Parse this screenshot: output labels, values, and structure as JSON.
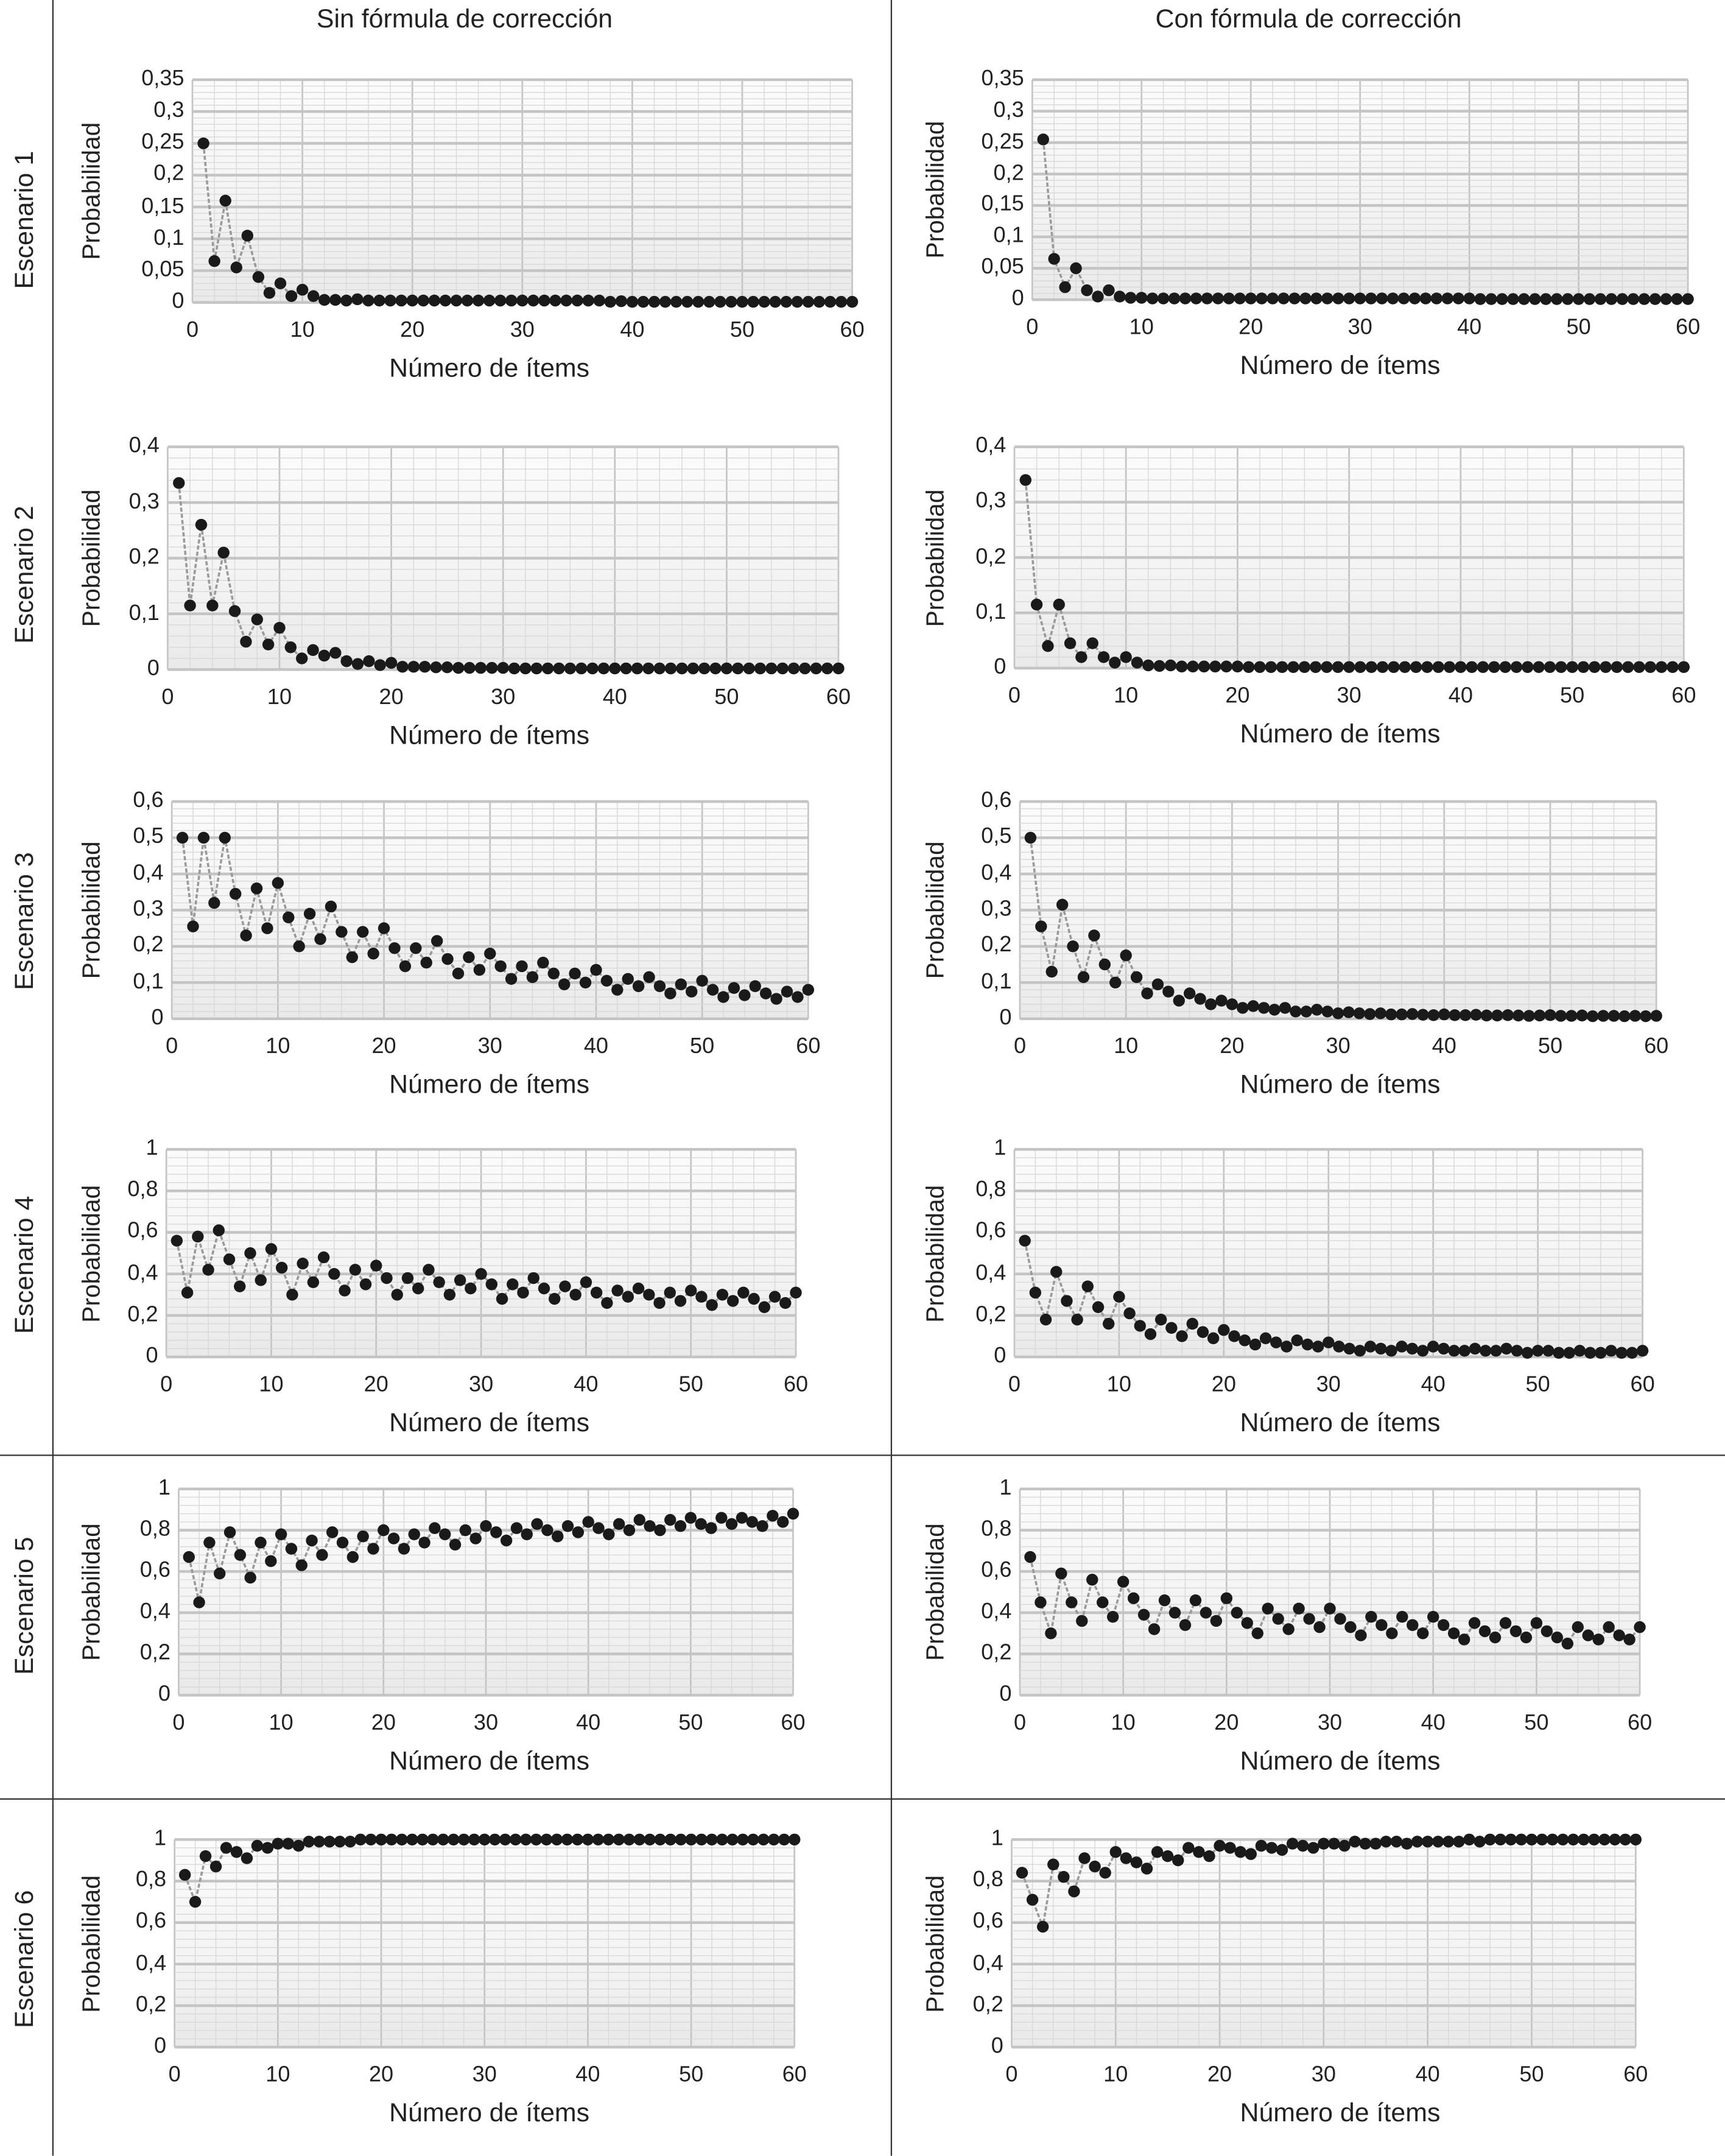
{
  "columns": [
    "Sin fórmula de corrección",
    "Con fórmula de corrección"
  ],
  "rows": [
    "Escenario 1",
    "Escenario 2",
    "Escenario 3",
    "Escenario 4",
    "Escenario 5",
    "Escenario 6"
  ],
  "colors": {
    "marker": "#1a1a1a",
    "line": "#9a9a9a",
    "grid": "#d8d8d8",
    "grid_major": "#c4c4c4"
  },
  "chart_data": [
    {
      "type": "line",
      "scenario": "Escenario 1",
      "column": "Sin fórmula de corrección",
      "xlabel": "Número de ítems",
      "ylabel": "Probabilidad",
      "xlim": [
        0,
        60
      ],
      "ylim": [
        0,
        0.35
      ],
      "grid": true,
      "xticks": [
        "0",
        "10",
        "20",
        "30",
        "40",
        "50",
        "60"
      ],
      "yticks": [
        "0",
        "0,05",
        "0,1",
        "0,15",
        "0,2",
        "0,25",
        "0,3",
        "0,35"
      ],
      "values": [
        0.25,
        0.065,
        0.16,
        0.055,
        0.105,
        0.04,
        0.015,
        0.03,
        0.01,
        0.02,
        0.01,
        0.004,
        0.004,
        0.003,
        0.005,
        0.003,
        0.003,
        0.003,
        0.003,
        0.003,
        0.003,
        0.003,
        0.003,
        0.003,
        0.003,
        0.003,
        0.003,
        0.003,
        0.003,
        0.003,
        0.003,
        0.003,
        0.003,
        0.003,
        0.003,
        0.003,
        0.003,
        0.001,
        0.002,
        0.001,
        0.001,
        0.001,
        0.001,
        0.001,
        0.001,
        0.001,
        0.001,
        0.001,
        0.001,
        0.001,
        0.001,
        0.001,
        0.001,
        0.001,
        0.001,
        0.001,
        0.001,
        0.001,
        0.001,
        0.001
      ]
    },
    {
      "type": "line",
      "scenario": "Escenario 1",
      "column": "Con fórmula de corrección",
      "xlabel": "Número de ítems",
      "ylabel": "Probabilidad",
      "xlim": [
        0,
        60
      ],
      "ylim": [
        0,
        0.35
      ],
      "grid": true,
      "xticks": [
        "0",
        "10",
        "20",
        "30",
        "40",
        "50",
        "60"
      ],
      "yticks": [
        "0",
        "0,05",
        "0,1",
        "0,15",
        "0,2",
        "0,25",
        "0,3",
        "0,35"
      ],
      "values": [
        0.255,
        0.065,
        0.02,
        0.05,
        0.015,
        0.005,
        0.015,
        0.005,
        0.003,
        0.003,
        0.002,
        0.002,
        0.002,
        0.002,
        0.002,
        0.002,
        0.002,
        0.002,
        0.002,
        0.002,
        0.002,
        0.002,
        0.002,
        0.002,
        0.002,
        0.002,
        0.002,
        0.002,
        0.002,
        0.002,
        0.002,
        0.002,
        0.002,
        0.002,
        0.002,
        0.002,
        0.002,
        0.002,
        0.002,
        0.002,
        0.001,
        0.001,
        0.001,
        0.001,
        0.001,
        0.001,
        0.001,
        0.001,
        0.001,
        0.001,
        0.001,
        0.001,
        0.001,
        0.001,
        0.001,
        0.001,
        0.001,
        0.001,
        0.001,
        0.001
      ]
    },
    {
      "type": "line",
      "scenario": "Escenario 2",
      "column": "Sin fórmula de corrección",
      "xlabel": "Número de ítems",
      "ylabel": "Probabilidad",
      "xlim": [
        0,
        60
      ],
      "ylim": [
        0,
        0.4
      ],
      "grid": true,
      "xticks": [
        "0",
        "10",
        "20",
        "30",
        "40",
        "50",
        "60"
      ],
      "yticks": [
        "0",
        "0,1",
        "0,2",
        "0,3",
        "0,4"
      ],
      "values": [
        0.335,
        0.115,
        0.26,
        0.115,
        0.21,
        0.105,
        0.05,
        0.09,
        0.045,
        0.075,
        0.04,
        0.02,
        0.035,
        0.025,
        0.03,
        0.015,
        0.01,
        0.015,
        0.008,
        0.012,
        0.005,
        0.005,
        0.005,
        0.004,
        0.004,
        0.003,
        0.003,
        0.003,
        0.003,
        0.003,
        0.002,
        0.002,
        0.002,
        0.002,
        0.002,
        0.002,
        0.002,
        0.002,
        0.002,
        0.002,
        0.002,
        0.002,
        0.002,
        0.002,
        0.002,
        0.002,
        0.002,
        0.002,
        0.002,
        0.002,
        0.002,
        0.002,
        0.002,
        0.002,
        0.002,
        0.002,
        0.002,
        0.002,
        0.002,
        0.002
      ]
    },
    {
      "type": "line",
      "scenario": "Escenario 2",
      "column": "Con fórmula de corrección",
      "xlabel": "Número de ítems",
      "ylabel": "Probabilidad",
      "xlim": [
        0,
        60
      ],
      "ylim": [
        0,
        0.4
      ],
      "grid": true,
      "xticks": [
        "0",
        "10",
        "20",
        "30",
        "40",
        "50",
        "60"
      ],
      "yticks": [
        "0",
        "0,1",
        "0,2",
        "0,3",
        "0,4"
      ],
      "values": [
        0.34,
        0.115,
        0.04,
        0.115,
        0.045,
        0.02,
        0.045,
        0.02,
        0.01,
        0.02,
        0.01,
        0.005,
        0.004,
        0.005,
        0.003,
        0.003,
        0.003,
        0.003,
        0.003,
        0.003,
        0.002,
        0.002,
        0.002,
        0.002,
        0.002,
        0.002,
        0.002,
        0.002,
        0.002,
        0.002,
        0.002,
        0.002,
        0.002,
        0.002,
        0.002,
        0.002,
        0.002,
        0.002,
        0.002,
        0.002,
        0.002,
        0.002,
        0.002,
        0.002,
        0.002,
        0.002,
        0.002,
        0.002,
        0.002,
        0.002,
        0.002,
        0.002,
        0.002,
        0.002,
        0.002,
        0.002,
        0.002,
        0.002,
        0.002,
        0.002
      ]
    },
    {
      "type": "line",
      "scenario": "Escenario 3",
      "column": "Sin fórmula de corrección",
      "xlabel": "Número de ítems",
      "ylabel": "Probabilidad",
      "xlim": [
        0,
        60
      ],
      "ylim": [
        0,
        0.6
      ],
      "grid": true,
      "xticks": [
        "0",
        "10",
        "20",
        "30",
        "40",
        "50",
        "60"
      ],
      "yticks": [
        "0",
        "0,1",
        "0,2",
        "0,3",
        "0,4",
        "0,5",
        "0,6"
      ],
      "values": [
        0.5,
        0.255,
        0.5,
        0.32,
        0.5,
        0.345,
        0.23,
        0.36,
        0.25,
        0.375,
        0.28,
        0.2,
        0.29,
        0.22,
        0.31,
        0.24,
        0.17,
        0.24,
        0.18,
        0.25,
        0.195,
        0.145,
        0.195,
        0.155,
        0.215,
        0.165,
        0.125,
        0.17,
        0.135,
        0.18,
        0.145,
        0.11,
        0.145,
        0.115,
        0.155,
        0.125,
        0.095,
        0.125,
        0.1,
        0.135,
        0.105,
        0.08,
        0.11,
        0.09,
        0.115,
        0.09,
        0.07,
        0.095,
        0.075,
        0.105,
        0.08,
        0.06,
        0.085,
        0.065,
        0.09,
        0.07,
        0.055,
        0.075,
        0.06,
        0.08
      ]
    },
    {
      "type": "line",
      "scenario": "Escenario 3",
      "column": "Con fórmula de corrección",
      "xlabel": "Número de ítems",
      "ylabel": "Probabilidad",
      "xlim": [
        0,
        60
      ],
      "ylim": [
        0,
        0.6
      ],
      "grid": true,
      "xticks": [
        "0",
        "10",
        "20",
        "30",
        "40",
        "50",
        "60"
      ],
      "yticks": [
        "0",
        "0,1",
        "0,2",
        "0,3",
        "0,4",
        "0,5",
        "0,6"
      ],
      "values": [
        0.5,
        0.255,
        0.13,
        0.315,
        0.2,
        0.115,
        0.23,
        0.15,
        0.1,
        0.175,
        0.115,
        0.07,
        0.095,
        0.075,
        0.05,
        0.07,
        0.055,
        0.04,
        0.05,
        0.04,
        0.03,
        0.035,
        0.03,
        0.025,
        0.03,
        0.02,
        0.02,
        0.025,
        0.02,
        0.015,
        0.018,
        0.015,
        0.013,
        0.015,
        0.012,
        0.012,
        0.013,
        0.011,
        0.01,
        0.012,
        0.01,
        0.01,
        0.011,
        0.009,
        0.009,
        0.01,
        0.009,
        0.008,
        0.009,
        0.01,
        0.008,
        0.008,
        0.009,
        0.007,
        0.008,
        0.008,
        0.007,
        0.008,
        0.007,
        0.008
      ]
    },
    {
      "type": "line",
      "scenario": "Escenario 4",
      "column": "Sin fórmula de corrección",
      "xlabel": "Número de ítems",
      "ylabel": "Probabilidad",
      "xlim": [
        0,
        60
      ],
      "ylim": [
        0,
        1
      ],
      "grid": true,
      "xticks": [
        "0",
        "10",
        "20",
        "30",
        "40",
        "50",
        "60"
      ],
      "yticks": [
        "0",
        "0,2",
        "0,4",
        "0,6",
        "0,8",
        "1"
      ],
      "values": [
        0.56,
        0.31,
        0.58,
        0.42,
        0.61,
        0.47,
        0.34,
        0.5,
        0.37,
        0.52,
        0.43,
        0.3,
        0.45,
        0.36,
        0.48,
        0.4,
        0.32,
        0.42,
        0.35,
        0.44,
        0.38,
        0.3,
        0.38,
        0.33,
        0.42,
        0.36,
        0.3,
        0.37,
        0.33,
        0.4,
        0.35,
        0.28,
        0.35,
        0.31,
        0.38,
        0.33,
        0.28,
        0.34,
        0.3,
        0.36,
        0.31,
        0.26,
        0.32,
        0.29,
        0.33,
        0.3,
        0.26,
        0.31,
        0.27,
        0.32,
        0.29,
        0.25,
        0.3,
        0.27,
        0.31,
        0.28,
        0.24,
        0.29,
        0.26,
        0.31
      ]
    },
    {
      "type": "line",
      "scenario": "Escenario 4",
      "column": "Con fórmula de corrección",
      "xlabel": "Número de ítems",
      "ylabel": "Probabilidad",
      "xlim": [
        0,
        60
      ],
      "ylim": [
        0,
        1
      ],
      "grid": true,
      "xticks": [
        "0",
        "10",
        "20",
        "30",
        "40",
        "50",
        "60"
      ],
      "yticks": [
        "0",
        "0,2",
        "0,4",
        "0,6",
        "0,8",
        "1"
      ],
      "values": [
        0.56,
        0.31,
        0.18,
        0.41,
        0.27,
        0.18,
        0.34,
        0.24,
        0.16,
        0.29,
        0.21,
        0.15,
        0.11,
        0.18,
        0.14,
        0.1,
        0.16,
        0.12,
        0.09,
        0.13,
        0.1,
        0.08,
        0.06,
        0.09,
        0.07,
        0.05,
        0.08,
        0.06,
        0.05,
        0.07,
        0.05,
        0.04,
        0.03,
        0.05,
        0.04,
        0.03,
        0.05,
        0.04,
        0.03,
        0.05,
        0.04,
        0.03,
        0.03,
        0.04,
        0.03,
        0.03,
        0.04,
        0.03,
        0.02,
        0.03,
        0.03,
        0.02,
        0.02,
        0.03,
        0.02,
        0.02,
        0.03,
        0.02,
        0.02,
        0.03
      ]
    },
    {
      "type": "line",
      "scenario": "Escenario 5",
      "column": "Sin fórmula de corrección",
      "xlabel": "Número de ítems",
      "ylabel": "Probabilidad",
      "xlim": [
        0,
        60
      ],
      "ylim": [
        0,
        1
      ],
      "grid": true,
      "xticks": [
        "0",
        "10",
        "20",
        "30",
        "40",
        "50",
        "60"
      ],
      "yticks": [
        "0",
        "0,2",
        "0,4",
        "0,6",
        "0,8",
        "1"
      ],
      "values": [
        0.67,
        0.45,
        0.74,
        0.59,
        0.79,
        0.68,
        0.57,
        0.74,
        0.65,
        0.78,
        0.71,
        0.63,
        0.75,
        0.68,
        0.79,
        0.74,
        0.67,
        0.77,
        0.71,
        0.8,
        0.76,
        0.71,
        0.78,
        0.74,
        0.81,
        0.78,
        0.73,
        0.8,
        0.76,
        0.82,
        0.79,
        0.75,
        0.81,
        0.78,
        0.83,
        0.8,
        0.77,
        0.82,
        0.79,
        0.84,
        0.81,
        0.78,
        0.83,
        0.8,
        0.85,
        0.82,
        0.8,
        0.85,
        0.82,
        0.86,
        0.83,
        0.81,
        0.86,
        0.83,
        0.86,
        0.84,
        0.82,
        0.87,
        0.84,
        0.88
      ]
    },
    {
      "type": "line",
      "scenario": "Escenario 5",
      "column": "Con fórmula de corrección",
      "xlabel": "Número de ítems",
      "ylabel": "Probabilidad",
      "xlim": [
        0,
        60
      ],
      "ylim": [
        0,
        1
      ],
      "grid": true,
      "xticks": [
        "0",
        "10",
        "20",
        "30",
        "40",
        "50",
        "60"
      ],
      "yticks": [
        "0",
        "0,2",
        "0,4",
        "0,6",
        "0,8",
        "1"
      ],
      "values": [
        0.67,
        0.45,
        0.3,
        0.59,
        0.45,
        0.36,
        0.56,
        0.45,
        0.38,
        0.55,
        0.47,
        0.39,
        0.32,
        0.46,
        0.4,
        0.34,
        0.46,
        0.4,
        0.36,
        0.47,
        0.4,
        0.35,
        0.3,
        0.42,
        0.37,
        0.32,
        0.42,
        0.37,
        0.33,
        0.42,
        0.37,
        0.33,
        0.29,
        0.38,
        0.34,
        0.3,
        0.38,
        0.34,
        0.3,
        0.38,
        0.34,
        0.3,
        0.27,
        0.35,
        0.31,
        0.28,
        0.35,
        0.31,
        0.28,
        0.35,
        0.31,
        0.28,
        0.25,
        0.33,
        0.29,
        0.27,
        0.33,
        0.29,
        0.27,
        0.33
      ]
    },
    {
      "type": "line",
      "scenario": "Escenario 6",
      "column": "Sin fórmula de corrección",
      "xlabel": "Número de ítems",
      "ylabel": "Probabilidad",
      "xlim": [
        0,
        60
      ],
      "ylim": [
        0,
        1
      ],
      "grid": true,
      "xticks": [
        "0",
        "10",
        "20",
        "30",
        "40",
        "50",
        "60"
      ],
      "yticks": [
        "0",
        "0,2",
        "0,4",
        "0,6",
        "0,8",
        "1"
      ],
      "values": [
        0.83,
        0.7,
        0.92,
        0.87,
        0.96,
        0.94,
        0.91,
        0.97,
        0.96,
        0.98,
        0.98,
        0.97,
        0.99,
        0.99,
        0.99,
        0.99,
        0.99,
        1,
        1,
        1,
        1,
        1,
        1,
        1,
        1,
        1,
        1,
        1,
        1,
        1,
        1,
        1,
        1,
        1,
        1,
        1,
        1,
        1,
        1,
        1,
        1,
        1,
        1,
        1,
        1,
        1,
        1,
        1,
        1,
        1,
        1,
        1,
        1,
        1,
        1,
        1,
        1,
        1,
        1,
        1
      ]
    },
    {
      "type": "line",
      "scenario": "Escenario 6",
      "column": "Con fórmula de corrección",
      "xlabel": "Número de ítems",
      "ylabel": "Probabilidad",
      "xlim": [
        0,
        60
      ],
      "ylim": [
        0,
        1
      ],
      "grid": true,
      "xticks": [
        "0",
        "10",
        "20",
        "30",
        "40",
        "50",
        "60"
      ],
      "yticks": [
        "0",
        "0,2",
        "0,4",
        "0,6",
        "0,8",
        "1"
      ],
      "values": [
        0.84,
        0.71,
        0.58,
        0.88,
        0.82,
        0.75,
        0.91,
        0.87,
        0.84,
        0.94,
        0.91,
        0.89,
        0.86,
        0.94,
        0.92,
        0.9,
        0.96,
        0.94,
        0.92,
        0.97,
        0.96,
        0.94,
        0.93,
        0.97,
        0.96,
        0.95,
        0.98,
        0.97,
        0.96,
        0.98,
        0.98,
        0.97,
        0.99,
        0.98,
        0.98,
        0.99,
        0.99,
        0.98,
        0.99,
        0.99,
        0.99,
        0.99,
        0.99,
        1,
        0.99,
        1,
        1,
        1,
        1,
        1,
        1,
        1,
        1,
        1,
        1,
        1,
        1,
        1,
        1,
        1
      ]
    }
  ]
}
